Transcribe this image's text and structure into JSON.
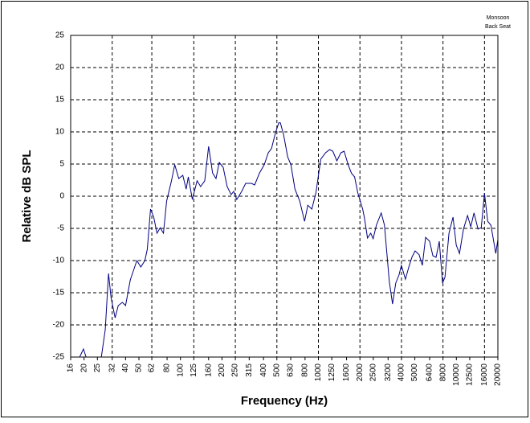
{
  "chart_data": {
    "type": "line",
    "annotation": [
      "Monsoon",
      "Back Seat"
    ],
    "xlabel": "Frequency (Hz)",
    "ylabel": "Relative dB SPL",
    "xscale": "log",
    "xlim": [
      16,
      20000
    ],
    "xticks": [
      16,
      20,
      25,
      32,
      40,
      50,
      62,
      80,
      100,
      125,
      160,
      200,
      250,
      315,
      400,
      500,
      630,
      800,
      1000,
      1250,
      1600,
      2000,
      2500,
      3200,
      4000,
      5000,
      6400,
      8000,
      10000,
      12500,
      16000,
      20000
    ],
    "xgrid": [
      32,
      62,
      125,
      250,
      500,
      1000,
      2000,
      4000,
      8000,
      16000
    ],
    "ylim": [
      -25,
      25
    ],
    "yticks": [
      -25,
      -20,
      -15,
      -10,
      -5,
      0,
      5,
      10,
      15,
      20,
      25
    ],
    "grid": true,
    "color": "#000080",
    "x": [
      18.6,
      19.8,
      20.7,
      26.7,
      28.5,
      30.1,
      31.4,
      33.6,
      35.4,
      37.9,
      40.0,
      43.3,
      48.3,
      51.6,
      55.2,
      57.5,
      60.7,
      64.0,
      67.6,
      71.3,
      75.3,
      79.4,
      86.1,
      90.9,
      97.2,
      104,
      110,
      114,
      122,
      132,
      140,
      150,
      160,
      171,
      181,
      191,
      204,
      218,
      233,
      243,
      256,
      278,
      297,
      327,
      345,
      374,
      405,
      433,
      457,
      489,
      516,
      530,
      560,
      599,
      632,
      676,
      732,
      794,
      838,
      896,
      959,
      1040,
      1127,
      1206,
      1272,
      1361,
      1455,
      1536,
      1643,
      1734,
      1830,
      1931,
      2094,
      2151,
      2270,
      2396,
      2494,
      2632,
      2853,
      3012,
      3265,
      3446,
      3637,
      3838,
      3996,
      4274,
      4510,
      4760,
      5023,
      5373,
      5670,
      5984,
      6401,
      6755,
      7128,
      7523,
      7939,
      8267,
      8843,
      9459,
      9982,
      10534,
      11268,
      12053,
      12720,
      13422,
      14357,
      15152,
      15991,
      16874,
      17811,
      19308,
      20000
    ],
    "values": [
      -25,
      -23.75,
      -25,
      -25,
      -20.75,
      -12,
      -15.75,
      -18.9,
      -17,
      -16.5,
      -17,
      -13,
      -10,
      -11,
      -10,
      -8.25,
      -2,
      -3.25,
      -5.75,
      -4.9,
      -5.75,
      -0.75,
      2.4,
      4.9,
      2.75,
      3.25,
      1.1,
      3,
      -0.5,
      2.4,
      1.5,
      2.4,
      7.75,
      3.6,
      2.75,
      5.25,
      4.5,
      1.5,
      0.25,
      0.75,
      -0.5,
      0.75,
      2,
      2,
      1.75,
      3.6,
      4.9,
      6.75,
      7.4,
      9.9,
      11.4,
      11.4,
      9.5,
      6.1,
      4.9,
      1.1,
      -0.75,
      -3.9,
      -1.4,
      -2,
      0.5,
      5.75,
      6.75,
      7.25,
      7,
      5.5,
      6.75,
      7,
      4.9,
      3.6,
      3,
      0.5,
      -2,
      -3.25,
      -6.5,
      -5.75,
      -6.6,
      -4.5,
      -2.6,
      -4.5,
      -13.25,
      -16.75,
      -13.5,
      -12.25,
      -10.75,
      -12.9,
      -11.1,
      -9.5,
      -8.5,
      -9.1,
      -10.75,
      -6.4,
      -7,
      -9.25,
      -9.5,
      -7,
      -13.5,
      -12.6,
      -5.75,
      -3.25,
      -7.6,
      -8.9,
      -5.1,
      -3,
      -4.75,
      -2.6,
      -5.1,
      -4.9,
      0.5,
      -3.9,
      -4.5,
      -8.9,
      -6.75
    ]
  }
}
